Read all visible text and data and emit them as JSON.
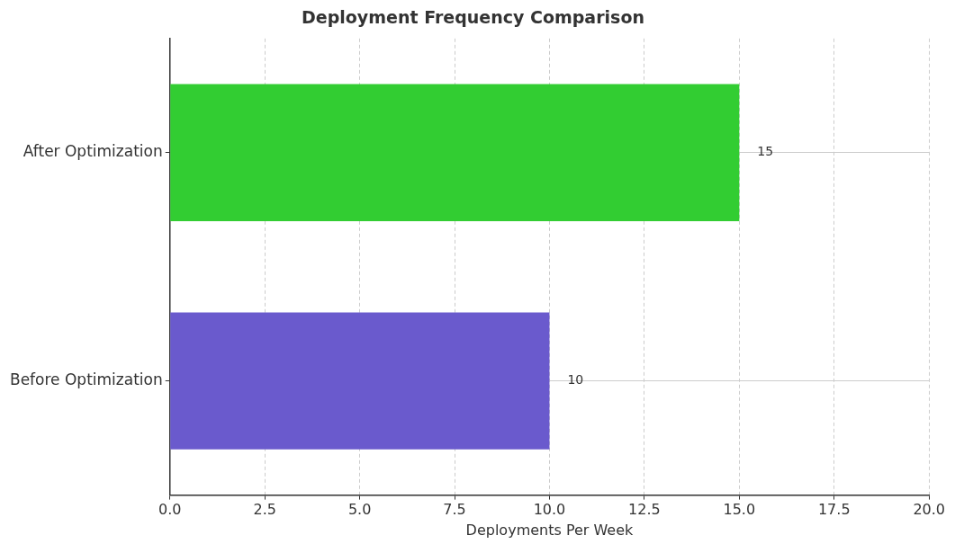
{
  "chart_data": {
    "type": "bar",
    "orientation": "horizontal",
    "title": "Deployment Frequency Comparison",
    "xlabel": "Deployments Per Week",
    "categories": [
      "After Optimization",
      "Before Optimization"
    ],
    "values": [
      15,
      10
    ],
    "colors": [
      "#32cd32",
      "#6a5acd"
    ],
    "xlim": [
      0,
      20
    ],
    "xticks": [
      {
        "value": 0,
        "label": "0.0"
      },
      {
        "value": 2.5,
        "label": "2.5"
      },
      {
        "value": 5,
        "label": "5.0"
      },
      {
        "value": 7.5,
        "label": "7.5"
      },
      {
        "value": 10,
        "label": "10.0"
      },
      {
        "value": 12.5,
        "label": "12.5"
      },
      {
        "value": 15,
        "label": "15.0"
      },
      {
        "value": 17.5,
        "label": "17.5"
      },
      {
        "value": 20,
        "label": "20.0"
      }
    ],
    "grid": true,
    "data_labels": true,
    "legend": false
  }
}
